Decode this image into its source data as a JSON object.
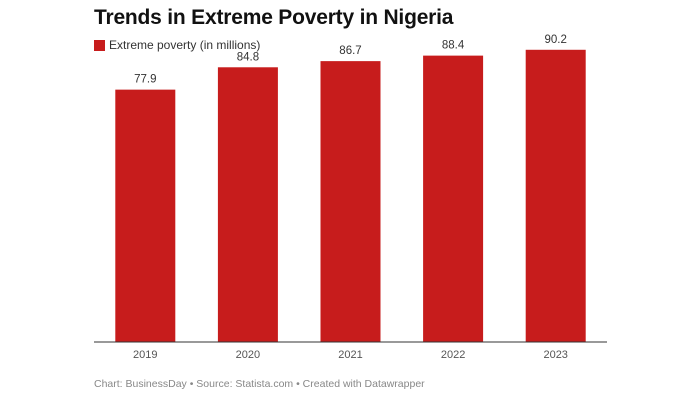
{
  "header": {
    "title": "Trends in Extreme Poverty in Nigeria"
  },
  "legend": {
    "items": [
      {
        "label": "Extreme poverty (in millions)",
        "color": "#c71c1c"
      }
    ]
  },
  "footer": {
    "text": "Chart: BusinessDay • Source: Statista.com • Created with Datawrapper"
  },
  "chart_data": {
    "type": "bar",
    "title": "Trends in Extreme Poverty in Nigeria",
    "categories": [
      "2019",
      "2020",
      "2021",
      "2022",
      "2023"
    ],
    "series": [
      {
        "name": "Extreme poverty (in millions)",
        "values": [
          77.9,
          84.8,
          86.7,
          88.4,
          90.2
        ],
        "labels": [
          "77.9",
          "84.8",
          "86.7",
          "88.4",
          "90.2"
        ],
        "color": "#c71c1c"
      }
    ],
    "xlabel": "",
    "ylabel": "",
    "ylim": [
      0,
      96
    ],
    "grid": false,
    "legend_position": "top-left"
  }
}
